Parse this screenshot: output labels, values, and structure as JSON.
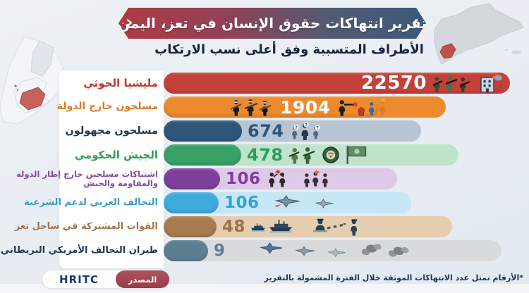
{
  "banner": {
    "title": "تقرير انتهاكات حقوق الإنسان في تعز، اليمن"
  },
  "subtitle": "الأطراف المتسببة وفق أعلى نسب الارتكاب",
  "chart_data": {
    "type": "bar",
    "orientation": "horizontal",
    "title": "تقرير انتهاكات حقوق الإنسان في تعز، اليمن",
    "subtitle": "الأطراف المتسببة وفق أعلى نسب الارتكاب",
    "categories": [
      "مليشيا الحوثي",
      "مسلحون خارج الدولة",
      "مسلحون مجهولون",
      "الجيش الحكومي",
      "اشتباكات مسلحين خارج إطار الدولة والمقاومة والجيش",
      "التحالف العربي لدعم الشرعية",
      "القوات المشتركة في ساحل تعز",
      "طيران التحالف الأمريكي البريطاني"
    ],
    "values": [
      22570,
      1904,
      674,
      478,
      106,
      106,
      48,
      9
    ],
    "bar_colors": [
      "#c4413a",
      "#ec8a2d",
      "#2f5679",
      "#38a266",
      "#7e3f9a",
      "#3fabdc",
      "#a87c50",
      "#5e7e92"
    ],
    "note": "*الأرقام تمثل عدد الانتهاكات الموثقة خلال الفترة المشمولة بالتقرير",
    "legend": "none",
    "grid": false
  },
  "rows": [
    {
      "label": "مليشيا الحوثي",
      "value": "22570",
      "label_color": "#c0392b",
      "label_size": 15,
      "bar_color": "#c4413a",
      "track_color": "#c4413a",
      "value_color": "#ffffff",
      "value_size": 26,
      "solid_w": 481,
      "track_w": 481,
      "mode": "end",
      "pad": 10,
      "icons": [
        "armed-soldiers-icon",
        "burning-building-icon"
      ],
      "icons_before": []
    },
    {
      "label": "مسلحون خارج الدولة",
      "value": "1904",
      "label_color": "#d97b26",
      "label_size": 14,
      "bar_color": "#ec8a2d",
      "track_color": "#ec8a2d",
      "value_color": "#ffffff",
      "value_size": 25,
      "solid_w": 305,
      "track_w": 305,
      "mode": "mid",
      "pad": 95,
      "icons": [
        "shooting-clash-icon"
      ],
      "icons_before": [
        "masked-gunmen-icon"
      ]
    },
    {
      "label": "مسلحون مجهولون",
      "value": "674",
      "label_color": "#223952",
      "label_size": 14.5,
      "bar_color": "#2f5679",
      "track_color": "#b6c4d4",
      "value_color": "#2f5679",
      "value_size": 24,
      "solid_w": 111,
      "track_w": 246,
      "mode": "after",
      "pad": 8,
      "icons": [
        "unknown-persons-icon"
      ],
      "icons_before": []
    },
    {
      "label": "الجيش الحكومي",
      "value": "478",
      "label_color": "#2f9e5f",
      "label_size": 15,
      "bar_color": "#38a266",
      "track_color": "#bfe3cb",
      "value_color": "#2f9e5f",
      "value_size": 24,
      "solid_w": 110,
      "track_w": 300,
      "mode": "after",
      "pad": 8,
      "icons": [
        "gov-soldiers-icon",
        "army-emblem-icon",
        "army-flag-icon"
      ],
      "icons_before": []
    },
    {
      "label": "اشتباكات مسلحين خارج إطار الدولة والمقاومة والجيش",
      "value": "106",
      "label_color": "#8a4aa0",
      "label_size": 11.5,
      "bar_color": "#7e3f9a",
      "track_color": "#dec9e7",
      "value_color": "#7e3f9a",
      "value_size": 23,
      "solid_w": 80,
      "track_w": 243,
      "mode": "after",
      "pad": 8,
      "icons": [
        "clash-fighters-icon"
      ],
      "icons_before": []
    },
    {
      "label": "التحالف العربي لدعم الشرعية",
      "value": "106",
      "label_color": "#3d9bc9",
      "label_size": 13,
      "bar_color": "#3fabdc",
      "track_color": "#c5e6f4",
      "value_color": "#35a3d4",
      "value_size": 23,
      "solid_w": 78,
      "track_w": 265,
      "mode": "after",
      "pad": 8,
      "icons": [
        "fighter-jets-icon"
      ],
      "icons_before": []
    },
    {
      "label": "القوات المشتركة في ساحل تعز",
      "value": "48",
      "label_color": "#a3764a",
      "label_size": 13,
      "bar_color": "#a87c50",
      "track_color": "#e5cdaf",
      "value_color": "#9c7247",
      "value_size": 23,
      "solid_w": 75,
      "track_w": 326,
      "mode": "after",
      "pad": 8,
      "icons": [
        "warships-icon",
        "checkpoint-officer-icon"
      ],
      "icons_before": []
    },
    {
      "label": "طيران التحالف الأمريكي البريطاني",
      "value": "9",
      "label_color": "#223952",
      "label_size": 13,
      "bar_color": "#5e7e92",
      "track_color": "#d7dbde",
      "value_color": "#5e7e92",
      "value_size": 23,
      "solid_w": 63,
      "track_w": 408,
      "mode": "after",
      "pad": 8,
      "icons": [
        "jets-smoke-icon"
      ],
      "icons_before": []
    }
  ],
  "source": {
    "label": "المصدر",
    "name": "HRITC"
  },
  "footnote": "*الأرقام تمثل عدد الانتهاكات الموثقة خلال الفترة المشمولة بالتقرير",
  "colors": {
    "background": "#e8edf3",
    "banner_red": "#ae3a45",
    "banner_blue": "#3b5a78",
    "taiz_highlight": "#c0524e",
    "map_gray": "#d3d8dd"
  }
}
